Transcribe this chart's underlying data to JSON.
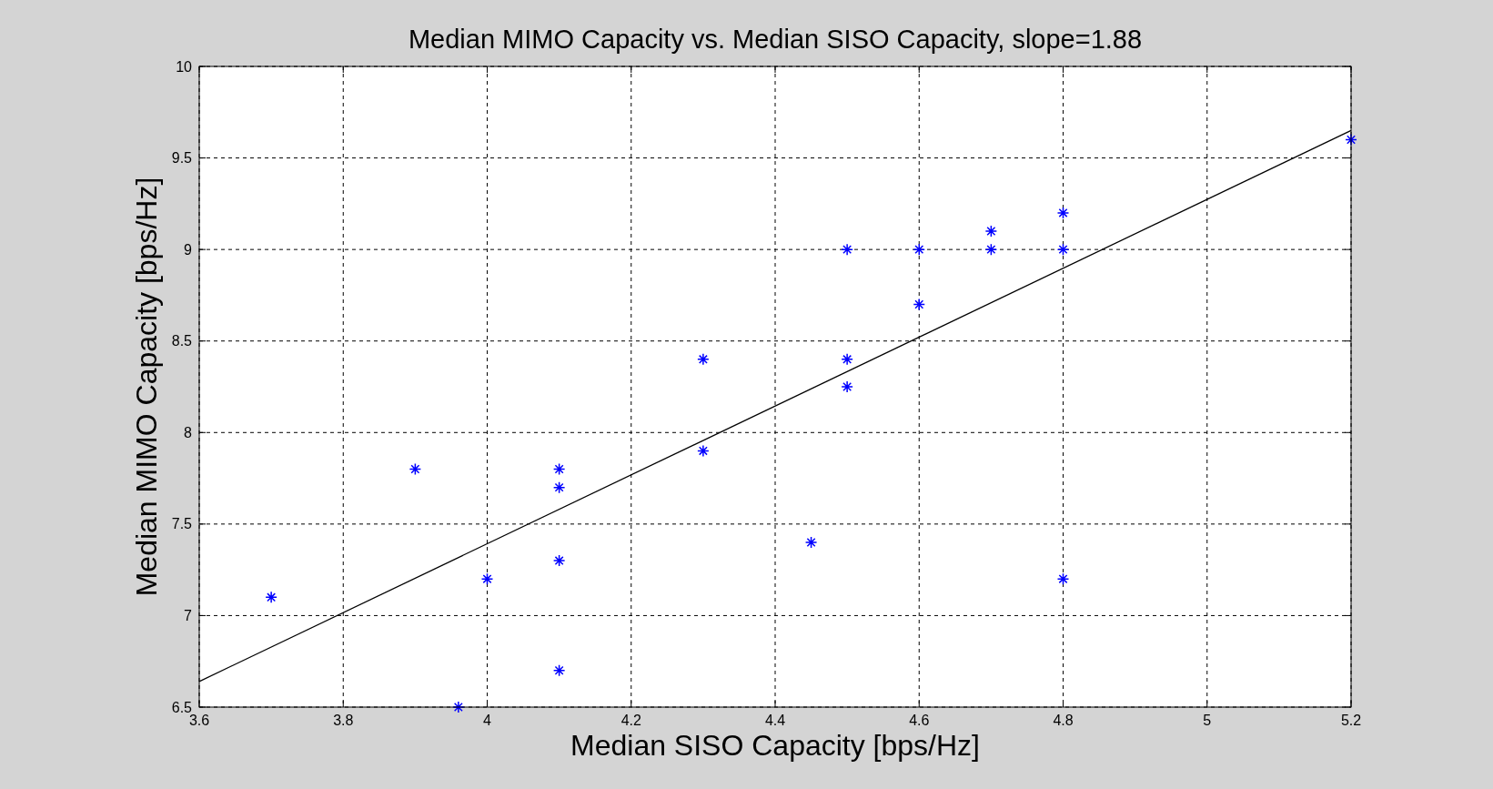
{
  "chart_data": {
    "type": "scatter",
    "title": "Median MIMO Capacity vs. Median SISO Capacity, slope=1.88",
    "xlabel": "Median SISO Capacity [bps/Hz]",
    "ylabel": "Median MIMO Capacity [bps/Hz]",
    "xlim": [
      3.6,
      5.2
    ],
    "xticks": [
      3.6,
      3.8,
      4,
      4.2,
      4.4,
      4.6,
      4.8,
      5,
      5.2
    ],
    "ylim": [
      6.5,
      10
    ],
    "yticks": [
      6.5,
      7,
      7.5,
      8,
      8.5,
      9,
      9.5,
      10
    ],
    "grid": true,
    "series": [
      {
        "marker": "cross",
        "color": "#0000ff",
        "x": [
          3.7,
          3.9,
          3.96,
          4.0,
          4.1,
          4.1,
          4.1,
          4.1,
          4.3,
          4.3,
          4.45,
          4.5,
          4.5,
          4.5,
          4.6,
          4.6,
          4.7,
          4.7,
          4.8,
          4.8,
          4.8,
          5.2
        ],
        "values": [
          7.1,
          7.8,
          6.5,
          7.2,
          7.8,
          7.7,
          7.3,
          6.7,
          8.4,
          7.9,
          7.4,
          9.0,
          8.4,
          8.25,
          9.0,
          8.7,
          9.1,
          9.0,
          9.2,
          9.0,
          7.2,
          9.6
        ]
      },
      {
        "type": "line",
        "marker": "none",
        "color": "#000000",
        "x": [
          3.6,
          5.2
        ],
        "values": [
          6.64,
          9.65
        ]
      }
    ]
  }
}
